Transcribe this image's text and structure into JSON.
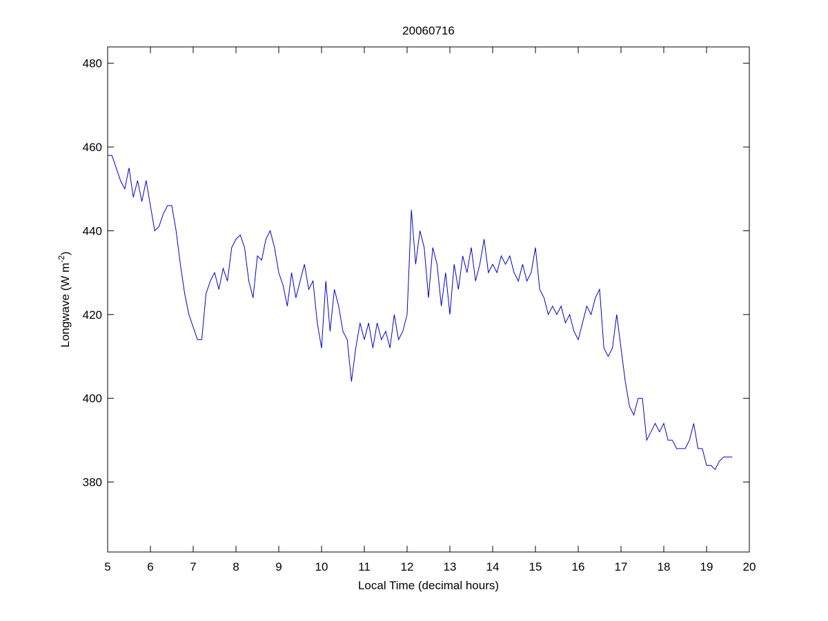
{
  "chart_data": {
    "type": "line",
    "title": "20060716",
    "xlabel": "Local Time (decimal hours)",
    "ylabel": {
      "text": "Longwave (W m",
      "sup": "-2",
      "end": ")"
    },
    "x": [
      5.0,
      5.1,
      5.2,
      5.3,
      5.4,
      5.5,
      5.6,
      5.7,
      5.8,
      5.9,
      6.0,
      6.1,
      6.2,
      6.3,
      6.4,
      6.5,
      6.6,
      6.7,
      6.8,
      6.9,
      7.0,
      7.1,
      7.2,
      7.3,
      7.4,
      7.5,
      7.6,
      7.7,
      7.8,
      7.9,
      8.0,
      8.1,
      8.2,
      8.3,
      8.4,
      8.5,
      8.6,
      8.7,
      8.8,
      8.9,
      9.0,
      9.1,
      9.2,
      9.3,
      9.4,
      9.5,
      9.6,
      9.7,
      9.8,
      9.9,
      10.0,
      10.1,
      10.2,
      10.3,
      10.4,
      10.5,
      10.6,
      10.7,
      10.8,
      10.9,
      11.0,
      11.1,
      11.2,
      11.3,
      11.4,
      11.5,
      11.6,
      11.7,
      11.8,
      11.9,
      12.0,
      12.1,
      12.2,
      12.3,
      12.4,
      12.5,
      12.6,
      12.7,
      12.8,
      12.9,
      13.0,
      13.1,
      13.2,
      13.3,
      13.4,
      13.5,
      13.6,
      13.7,
      13.8,
      13.9,
      14.0,
      14.1,
      14.2,
      14.3,
      14.4,
      14.5,
      14.6,
      14.7,
      14.8,
      14.9,
      15.0,
      15.1,
      15.2,
      15.3,
      15.4,
      15.5,
      15.6,
      15.7,
      15.8,
      15.9,
      16.0,
      16.1,
      16.2,
      16.3,
      16.4,
      16.5,
      16.6,
      16.7,
      16.8,
      16.9,
      17.0,
      17.1,
      17.2,
      17.3,
      17.4,
      17.5,
      17.6,
      17.7,
      17.8,
      17.9,
      18.0,
      18.1,
      18.2,
      18.3,
      18.4,
      18.5,
      18.6,
      18.7,
      18.8,
      18.9,
      19.0,
      19.1,
      19.2,
      19.3,
      19.4,
      19.5,
      19.6
    ],
    "series": [
      {
        "name": "Longwave",
        "color": "#0000cc",
        "values": [
          458,
          458,
          455,
          452,
          450,
          455,
          448,
          452,
          447,
          452,
          446,
          440,
          441,
          444,
          446,
          446,
          440,
          432,
          425,
          420,
          417,
          414,
          414,
          425,
          428,
          430,
          426,
          431,
          428,
          436,
          438,
          439,
          436,
          428,
          424,
          434,
          433,
          438,
          440,
          436,
          430,
          427,
          422,
          430,
          424,
          428,
          432,
          426,
          428,
          418,
          412,
          428,
          416,
          426,
          422,
          416,
          414,
          404,
          412,
          418,
          414,
          418,
          412,
          418,
          414,
          416,
          412,
          420,
          414,
          416,
          420,
          445,
          432,
          440,
          436,
          424,
          436,
          432,
          422,
          430,
          420,
          432,
          426,
          434,
          430,
          436,
          428,
          432,
          438,
          430,
          432,
          430,
          434,
          432,
          434,
          430,
          428,
          432,
          428,
          430,
          436,
          426,
          424,
          420,
          422,
          420,
          422,
          418,
          420,
          416,
          414,
          418,
          422,
          420,
          424,
          426,
          412,
          410,
          412,
          420,
          412,
          404,
          398,
          396,
          400,
          400,
          390,
          392,
          394,
          392,
          394,
          390,
          390,
          388,
          388,
          388,
          390,
          394,
          388,
          388,
          384,
          384,
          383,
          385,
          386,
          386,
          386
        ]
      }
    ],
    "xlim": [
      5,
      20
    ],
    "xticks": [
      5,
      6,
      7,
      8,
      9,
      10,
      11,
      12,
      13,
      14,
      15,
      16,
      17,
      18,
      19,
      20
    ],
    "ylim": [
      363.3,
      483.9
    ],
    "yticks": [
      380,
      400,
      420,
      440,
      460,
      480
    ],
    "grid": false
  }
}
